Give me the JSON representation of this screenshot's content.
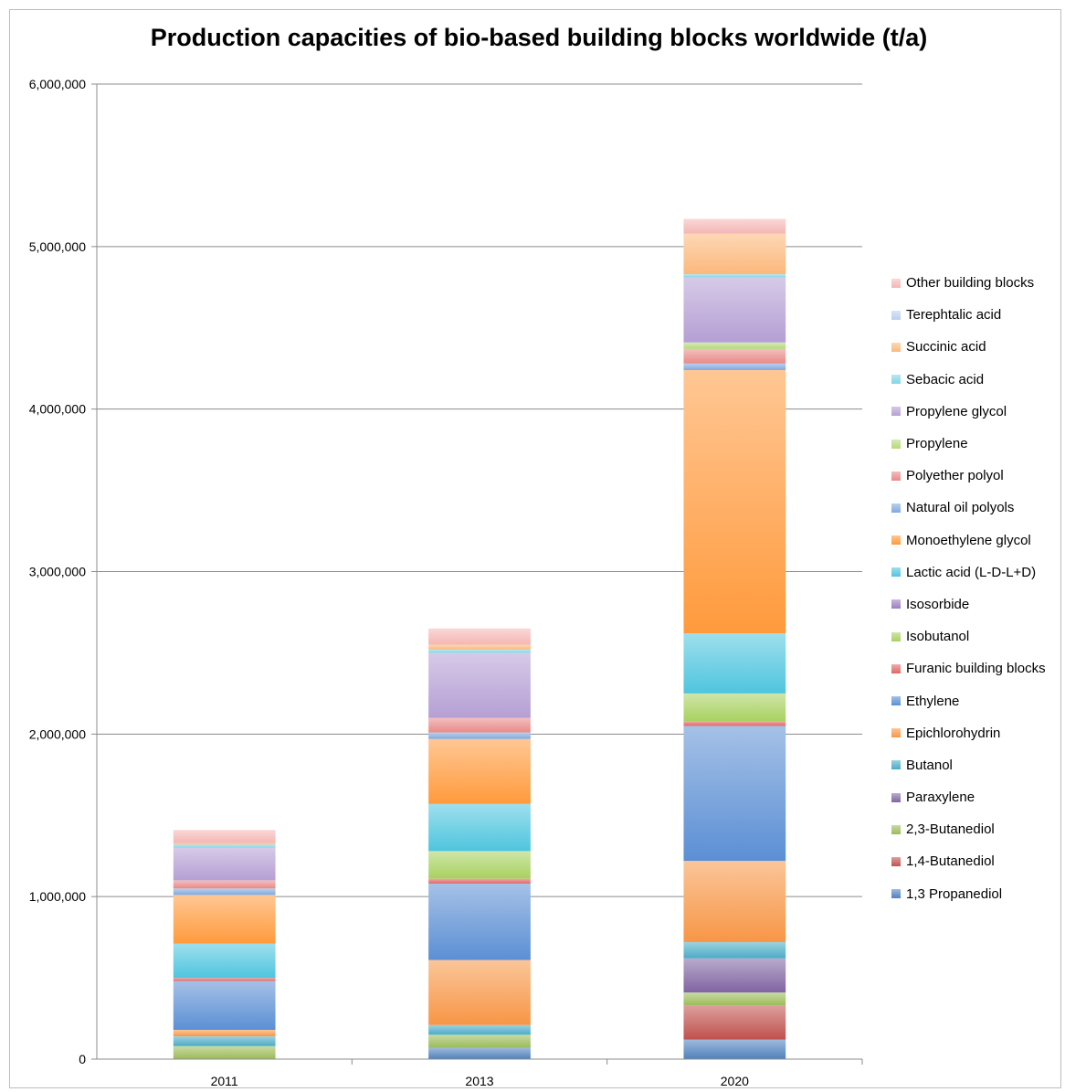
{
  "chart_data": {
    "type": "bar",
    "stacked": true,
    "title": "Production capacities of bio-based building blocks worldwide (t/a)",
    "xlabel": "",
    "ylabel": "",
    "categories": [
      "2011",
      "2013",
      "2020"
    ],
    "ylim": [
      0,
      6000000
    ],
    "yticks": [
      0,
      1000000,
      2000000,
      3000000,
      4000000,
      5000000,
      6000000
    ],
    "ytick_labels": [
      "0",
      "1,000,000",
      "2,000,000",
      "3,000,000",
      "4,000,000",
      "5,000,000",
      "6,000,000"
    ],
    "grid": true,
    "legend_position": "right",
    "series": [
      {
        "name": "1,3 Propanediol",
        "color": "#4f81bd",
        "values": [
          0,
          70000,
          120000
        ]
      },
      {
        "name": "1,4-Butanediol",
        "color": "#c0504d",
        "values": [
          0,
          0,
          210000
        ]
      },
      {
        "name": "2,3-Butanediol",
        "color": "#9bbb59",
        "values": [
          80000,
          80000,
          80000
        ]
      },
      {
        "name": "Paraxylene",
        "color": "#8064a2",
        "values": [
          0,
          0,
          210000
        ]
      },
      {
        "name": "Butanol",
        "color": "#4bacc6",
        "values": [
          60000,
          60000,
          100000
        ]
      },
      {
        "name": "Epichlorohydrin",
        "color": "#f79646",
        "values": [
          40000,
          400000,
          500000
        ]
      },
      {
        "name": "Ethylene",
        "color": "#5b8fd4",
        "values": [
          300000,
          470000,
          830000
        ]
      },
      {
        "name": "Furanic building blocks",
        "color": "#e06666",
        "values": [
          20000,
          30000,
          30000
        ]
      },
      {
        "name": "Isobutanol",
        "color": "#a8d160",
        "values": [
          0,
          170000,
          170000
        ]
      },
      {
        "name": "Isosorbide",
        "color": "#9b7fc0",
        "values": [
          0,
          0,
          0
        ]
      },
      {
        "name": "Lactic acid (L-D-L+D)",
        "color": "#4ec5de",
        "values": [
          210000,
          290000,
          370000
        ]
      },
      {
        "name": "Monoethylene glycol",
        "color": "#ff9a3c",
        "values": [
          300000,
          400000,
          1620000
        ]
      },
      {
        "name": "Natural oil polyols",
        "color": "#7fa9de",
        "values": [
          40000,
          40000,
          40000
        ]
      },
      {
        "name": "Polyether polyol",
        "color": "#e88a88",
        "values": [
          50000,
          90000,
          90000
        ]
      },
      {
        "name": "Propylene",
        "color": "#b4d97a",
        "values": [
          0,
          0,
          40000
        ]
      },
      {
        "name": "Propylene glycol",
        "color": "#b59fd4",
        "values": [
          200000,
          400000,
          400000
        ]
      },
      {
        "name": "Sebacic acid",
        "color": "#7fd6e8",
        "values": [
          20000,
          20000,
          20000
        ]
      },
      {
        "name": "Succinic acid",
        "color": "#fbb87a",
        "values": [
          10000,
          30000,
          250000
        ]
      },
      {
        "name": "Terephtalic acid",
        "color": "#b9cfee",
        "values": [
          0,
          0,
          0
        ]
      },
      {
        "name": "Other building blocks",
        "color": "#f4b6b5",
        "values": [
          80000,
          100000,
          90000
        ]
      }
    ]
  }
}
